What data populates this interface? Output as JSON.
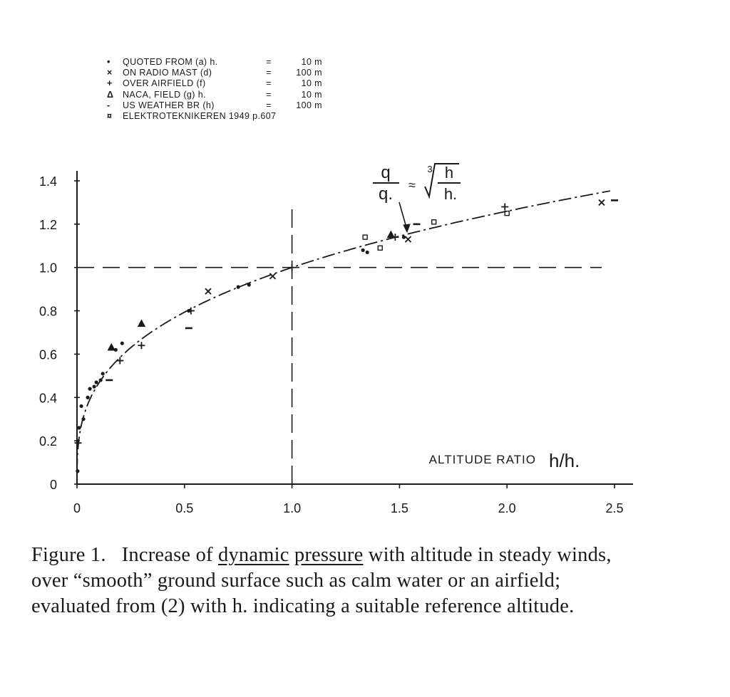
{
  "legend": [
    {
      "symbol": "•",
      "text": "QUOTED  FROM  (a)  h.",
      "eq": "=",
      "value": "10 m"
    },
    {
      "symbol": "×",
      "text": "ON  RADIO  MAST  (d)",
      "eq": "=",
      "value": "100 m"
    },
    {
      "symbol": "+",
      "text": "OVER  AIRFIELD  (f)",
      "eq": "=",
      "value": "10 m"
    },
    {
      "symbol": "Δ",
      "text": "NACA,  FIELD  (g)  h.",
      "eq": "=",
      "value": "10 m"
    },
    {
      "symbol": "-",
      "text": "US  WEATHER  BR  (h)",
      "eq": "=",
      "value": "100 m"
    },
    {
      "symbol": "¤",
      "text": "ELEKTROTEKNIKEREN  1949  p.607",
      "eq": "",
      "value": ""
    }
  ],
  "formula": {
    "numerator": "q",
    "denominator": "q.",
    "approx": "≈",
    "root_index": "3",
    "radicand_num": "h",
    "radicand_den": "h."
  },
  "caption": {
    "number": "Figure 1.",
    "part1": "Increase of ",
    "underlined1": "dynamic",
    "space": " ",
    "underlined2": "pressure",
    "part2": " with altitude in steady winds, over “smooth” ground surface such as calm water or an airfield; evaluated from (2) with h. indicating a suitable reference altitude."
  },
  "chart_data": {
    "type": "scatter",
    "xlabel": "ALTITUDE RATIO",
    "xlabel_symbol": "h/h.",
    "ylabel": "",
    "xlim": [
      0,
      2.5
    ],
    "ylim": [
      0,
      1.4
    ],
    "x_ticks": [
      "0",
      "0.5",
      "1.0",
      "1.5",
      "2.0",
      "2.5"
    ],
    "x_tick_values": [
      0,
      0.5,
      1.0,
      1.5,
      2.0,
      2.5
    ],
    "y_ticks": [
      "0",
      "0.2",
      "0.4",
      "0.6",
      "0.8",
      "1.0",
      "1.2",
      "1.4"
    ],
    "y_tick_values": [
      0,
      0.2,
      0.4,
      0.6,
      0.8,
      1.0,
      1.2,
      1.4
    ],
    "reference_lines": {
      "x": 1.0,
      "y": 1.0
    },
    "curve": {
      "type": "cube-root",
      "label": "q/q. ≈ ∛(h/h.)"
    },
    "series": [
      {
        "marker": "dot",
        "points": [
          [
            0.003,
            0.06
          ],
          [
            0.01,
            0.26
          ],
          [
            0.02,
            0.36
          ],
          [
            0.03,
            0.3
          ],
          [
            0.05,
            0.4
          ],
          [
            0.06,
            0.44
          ],
          [
            0.08,
            0.45
          ],
          [
            0.09,
            0.47
          ],
          [
            0.11,
            0.48
          ],
          [
            0.12,
            0.51
          ],
          [
            0.18,
            0.62
          ],
          [
            0.21,
            0.65
          ],
          [
            0.52,
            0.8
          ],
          [
            0.75,
            0.91
          ],
          [
            0.8,
            0.92
          ],
          [
            1.33,
            1.08
          ],
          [
            1.35,
            1.07
          ],
          [
            1.52,
            1.14
          ]
        ]
      },
      {
        "marker": "cross",
        "points": [
          [
            0.61,
            0.89
          ],
          [
            0.91,
            0.96
          ],
          [
            1.54,
            1.13
          ],
          [
            2.44,
            1.3
          ]
        ]
      },
      {
        "marker": "plus",
        "points": [
          [
            0.005,
            0.19
          ],
          [
            0.2,
            0.57
          ],
          [
            0.3,
            0.64
          ],
          [
            0.53,
            0.8
          ],
          [
            1.0,
            1.0
          ],
          [
            1.48,
            1.14
          ],
          [
            1.99,
            1.28
          ]
        ]
      },
      {
        "marker": "triangle",
        "points": [
          [
            0.16,
            0.63
          ],
          [
            0.3,
            0.74
          ],
          [
            1.46,
            1.15
          ]
        ]
      },
      {
        "marker": "dash",
        "points": [
          [
            0.15,
            0.48
          ],
          [
            0.52,
            0.72
          ],
          [
            1.58,
            1.2
          ],
          [
            2.5,
            1.31
          ]
        ]
      },
      {
        "marker": "square",
        "points": [
          [
            1.34,
            1.14
          ],
          [
            1.41,
            1.09
          ],
          [
            1.66,
            1.21
          ],
          [
            2.0,
            1.25
          ]
        ]
      }
    ]
  }
}
